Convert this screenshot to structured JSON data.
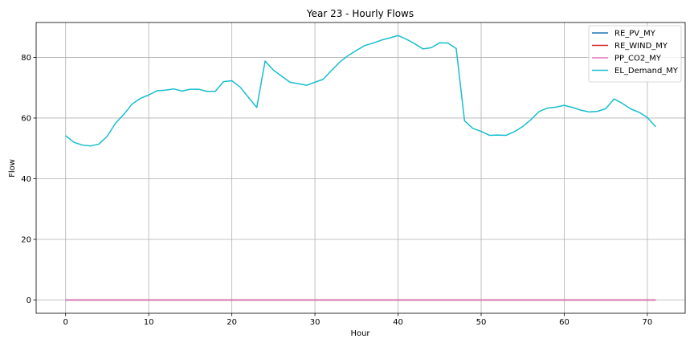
{
  "chart_data": {
    "type": "line",
    "title": "Year 23 - Hourly Flows",
    "xlabel": "Hour",
    "ylabel": "Flow",
    "xlim": [
      -3.55,
      74.55
    ],
    "ylim": [
      -4.36,
      91.5
    ],
    "xticks": [
      0,
      10,
      20,
      30,
      40,
      50,
      60,
      70
    ],
    "yticks": [
      0,
      20,
      40,
      60,
      80
    ],
    "grid": true,
    "legend_position": "top-right",
    "x": [
      0,
      1,
      2,
      3,
      4,
      5,
      6,
      7,
      8,
      9,
      10,
      11,
      12,
      13,
      14,
      15,
      16,
      17,
      18,
      19,
      20,
      21,
      22,
      23,
      24,
      25,
      26,
      27,
      28,
      29,
      30,
      31,
      32,
      33,
      34,
      35,
      36,
      37,
      38,
      39,
      40,
      41,
      42,
      43,
      44,
      45,
      46,
      47,
      48,
      49,
      50,
      51,
      52,
      53,
      54,
      55,
      56,
      57,
      58,
      59,
      60,
      61,
      62,
      63,
      64,
      65,
      66,
      67,
      68,
      69,
      70,
      71
    ],
    "series": [
      {
        "name": "RE_PV_MY",
        "color": "#1f77b4",
        "values": [
          0,
          0,
          0,
          0,
          0,
          0,
          0,
          0,
          0,
          0,
          0,
          0,
          0,
          0,
          0,
          0,
          0,
          0,
          0,
          0,
          0,
          0,
          0,
          0,
          0,
          0,
          0,
          0,
          0,
          0,
          0,
          0,
          0,
          0,
          0,
          0,
          0,
          0,
          0,
          0,
          0,
          0,
          0,
          0,
          0,
          0,
          0,
          0,
          0,
          0,
          0,
          0,
          0,
          0,
          0,
          0,
          0,
          0,
          0,
          0,
          0,
          0,
          0,
          0,
          0,
          0,
          0,
          0,
          0,
          0,
          0,
          0
        ]
      },
      {
        "name": "RE_WIND_MY",
        "color": "#d62728",
        "values": [
          0,
          0,
          0,
          0,
          0,
          0,
          0,
          0,
          0,
          0,
          0,
          0,
          0,
          0,
          0,
          0,
          0,
          0,
          0,
          0,
          0,
          0,
          0,
          0,
          0,
          0,
          0,
          0,
          0,
          0,
          0,
          0,
          0,
          0,
          0,
          0,
          0,
          0,
          0,
          0,
          0,
          0,
          0,
          0,
          0,
          0,
          0,
          0,
          0,
          0,
          0,
          0,
          0,
          0,
          0,
          0,
          0,
          0,
          0,
          0,
          0,
          0,
          0,
          0,
          0,
          0,
          0,
          0,
          0,
          0,
          0,
          0
        ]
      },
      {
        "name": "PP_CO2_MY",
        "color": "#e377c2",
        "values": [
          0,
          0,
          0,
          0,
          0,
          0,
          0,
          0,
          0,
          0,
          0,
          0,
          0,
          0,
          0,
          0,
          0,
          0,
          0,
          0,
          0,
          0,
          0,
          0,
          0,
          0,
          0,
          0,
          0,
          0,
          0,
          0,
          0,
          0,
          0,
          0,
          0,
          0,
          0,
          0,
          0,
          0,
          0,
          0,
          0,
          0,
          0,
          0,
          0,
          0,
          0,
          0,
          0,
          0,
          0,
          0,
          0,
          0,
          0,
          0,
          0,
          0,
          0,
          0,
          0,
          0,
          0,
          0,
          0,
          0,
          0,
          0
        ]
      },
      {
        "name": "EL_Demand_MY",
        "color": "#17becf",
        "values": [
          54.2,
          52.0,
          51.1,
          50.8,
          51.4,
          54.0,
          58.3,
          61.2,
          64.6,
          66.5,
          67.6,
          69.0,
          69.2,
          69.6,
          68.9,
          69.5,
          69.5,
          68.8,
          68.8,
          72.0,
          72.3,
          70.2,
          66.8,
          63.5,
          78.8,
          75.8,
          73.8,
          71.8,
          71.3,
          70.8,
          71.8,
          72.8,
          75.7,
          78.5,
          80.6,
          82.3,
          83.9,
          84.7,
          85.7,
          86.4,
          87.2,
          86.0,
          84.5,
          82.8,
          83.2,
          84.8,
          84.7,
          82.9,
          59.1,
          56.6,
          55.6,
          54.3,
          54.4,
          54.3,
          55.5,
          57.2,
          59.5,
          62.2,
          63.3,
          63.6,
          64.2,
          63.5,
          62.6,
          62.0,
          62.2,
          63.1,
          66.3,
          64.8,
          63.0,
          61.9,
          60.2,
          57.1
        ]
      }
    ]
  }
}
